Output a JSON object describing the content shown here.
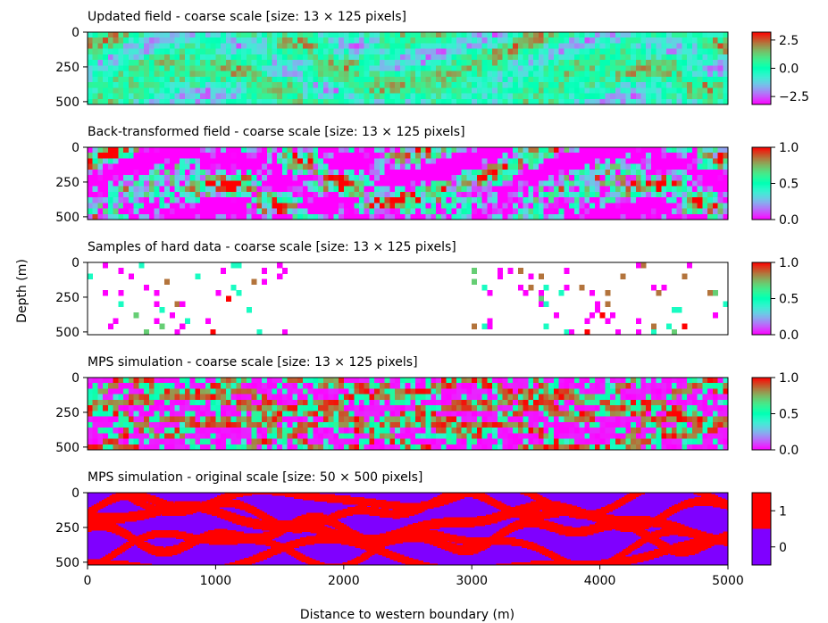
{
  "chart_data": [
    {
      "type": "heatmap",
      "title": "Updated field - coarse scale  [size: 13 × 125 pixels]",
      "rows": 13,
      "cols": 125,
      "colormap": "rainbow",
      "vmin": -3.2,
      "vmax": 3.2,
      "colorbar_ticks": [
        "2.5",
        "0.0",
        "−2.5"
      ],
      "colorbar_tick_values": [
        2.5,
        0.0,
        -2.5
      ],
      "pattern": "continuous",
      "seed": 11
    },
    {
      "type": "heatmap",
      "title": "Back-transformed field - coarse scale  [size: 13 × 125 pixels]",
      "rows": 13,
      "cols": 125,
      "colormap": "rainbow",
      "vmin": 0,
      "vmax": 1,
      "colorbar_ticks": [
        "1.0",
        "0.5",
        "0.0"
      ],
      "colorbar_tick_values": [
        1.0,
        0.5,
        0.0
      ],
      "pattern": "backtransformed",
      "seed": 23
    },
    {
      "type": "heatmap",
      "title": "Samples of hard data - coarse scale  [size: 13 × 125 pixels]",
      "rows": 13,
      "cols": 125,
      "colormap": "rainbow",
      "vmin": 0,
      "vmax": 1,
      "colorbar_ticks": [
        "1.0",
        "0.5",
        "0.0"
      ],
      "colorbar_tick_values": [
        1.0,
        0.5,
        0.0
      ],
      "pattern": "samples",
      "sample_col_ranges": [
        [
          0,
          39
        ],
        [
          71,
          125
        ]
      ],
      "seed": 37
    },
    {
      "type": "heatmap",
      "title": "MPS simulation - coarse scale  [size: 13 × 125 pixels]",
      "rows": 13,
      "cols": 125,
      "colormap": "rainbow",
      "vmin": 0,
      "vmax": 1,
      "colorbar_ticks": [
        "1.0",
        "0.5",
        "0.0"
      ],
      "colorbar_tick_values": [
        1.0,
        0.5,
        0.0
      ],
      "pattern": "channels_coarse",
      "seed": 51
    },
    {
      "type": "heatmap",
      "title": "MPS simulation - original scale  [size: 50 × 500 pixels]",
      "rows": 50,
      "cols": 500,
      "colormap": "binary_red_purple",
      "vmin": -0.5,
      "vmax": 1.5,
      "colorbar_ticks": [
        "1",
        "0"
      ],
      "colorbar_tick_values": [
        1,
        0
      ],
      "pattern": "channels_fine",
      "seed": 51
    }
  ],
  "axes": {
    "ylabel": "Depth (m)",
    "xlabel": "Distance to western boundary (m)",
    "y_ticks": [
      "0",
      "250",
      "500"
    ],
    "y_tick_values": [
      0,
      250,
      500
    ],
    "x_ticks": [
      "0",
      "1000",
      "2000",
      "3000",
      "4000",
      "5000"
    ],
    "x_tick_values": [
      0,
      1000,
      2000,
      3000,
      4000,
      5000
    ],
    "xlim": [
      0,
      5000
    ],
    "ylim": [
      0,
      520
    ]
  },
  "colors": {
    "binary_low": "#7f00ff",
    "binary_high": "#ff0000"
  }
}
